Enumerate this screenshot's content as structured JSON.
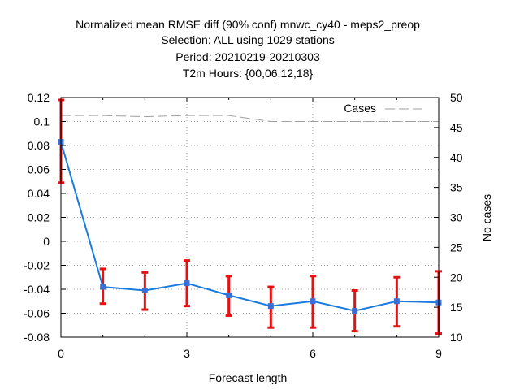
{
  "chart_data": {
    "type": "line",
    "title": {
      "line1": "Normalized mean RMSE diff (90% conf) mnwc_cy40 - meps2_preop",
      "line2": "Selection: ALL using  1029 stations",
      "line3": "Period: 20210219-20210303",
      "line4": "T2m   Hours: {00,06,12,18}"
    },
    "xlabel": "Forecast length",
    "ylabel_right": "No cases",
    "legend_label": "Cases",
    "xlim": [
      0,
      9
    ],
    "ylim": [
      -0.08,
      0.12
    ],
    "y2lim": [
      10,
      50
    ],
    "x_ticks": [
      0,
      3,
      6,
      9
    ],
    "x_tick_labels": [
      "0",
      "3",
      "6",
      "9"
    ],
    "y_ticks": [
      -0.08,
      -0.06,
      -0.04,
      -0.02,
      0,
      0.02,
      0.04,
      0.06,
      0.08,
      0.1,
      0.12
    ],
    "y_tick_labels": [
      "-0.08",
      "-0.06",
      "-0.04",
      "-0.02",
      "0",
      "0.02",
      "0.04",
      "0.06",
      "0.08",
      "0.1",
      "0.12"
    ],
    "y2_ticks": [
      10,
      15,
      20,
      25,
      30,
      35,
      40,
      45,
      50
    ],
    "y2_tick_labels": [
      "10",
      "15",
      "20",
      "25",
      "30",
      "35",
      "40",
      "45",
      "50"
    ],
    "grid": true,
    "legend_position": "top-right",
    "series": [
      {
        "x": [
          0,
          1,
          2,
          3,
          4,
          5,
          6,
          7,
          8,
          9
        ],
        "y": [
          0.083,
          -0.038,
          -0.041,
          -0.035,
          -0.045,
          -0.054,
          -0.05,
          -0.058,
          -0.05,
          -0.051
        ],
        "err_low": [
          0.049,
          -0.052,
          -0.057,
          -0.054,
          -0.062,
          -0.072,
          -0.072,
          -0.075,
          -0.071,
          -0.077
        ],
        "err_high": [
          0.118,
          -0.023,
          -0.026,
          -0.016,
          -0.029,
          -0.038,
          -0.029,
          -0.041,
          -0.03,
          -0.025
        ]
      },
      {
        "name": "Cases",
        "axis": "right",
        "x": [
          0,
          1,
          2,
          3,
          4,
          5,
          6,
          7,
          8,
          9
        ],
        "y": [
          47,
          47,
          46.8,
          47,
          47,
          46,
          46,
          46,
          46,
          46
        ]
      }
    ],
    "colors": {
      "line": "#1a7bdf",
      "marker": "#3a6fd8",
      "errorbar": "#e81010",
      "cases": "#a0a0a0",
      "grid": "#a0a0a0"
    }
  }
}
